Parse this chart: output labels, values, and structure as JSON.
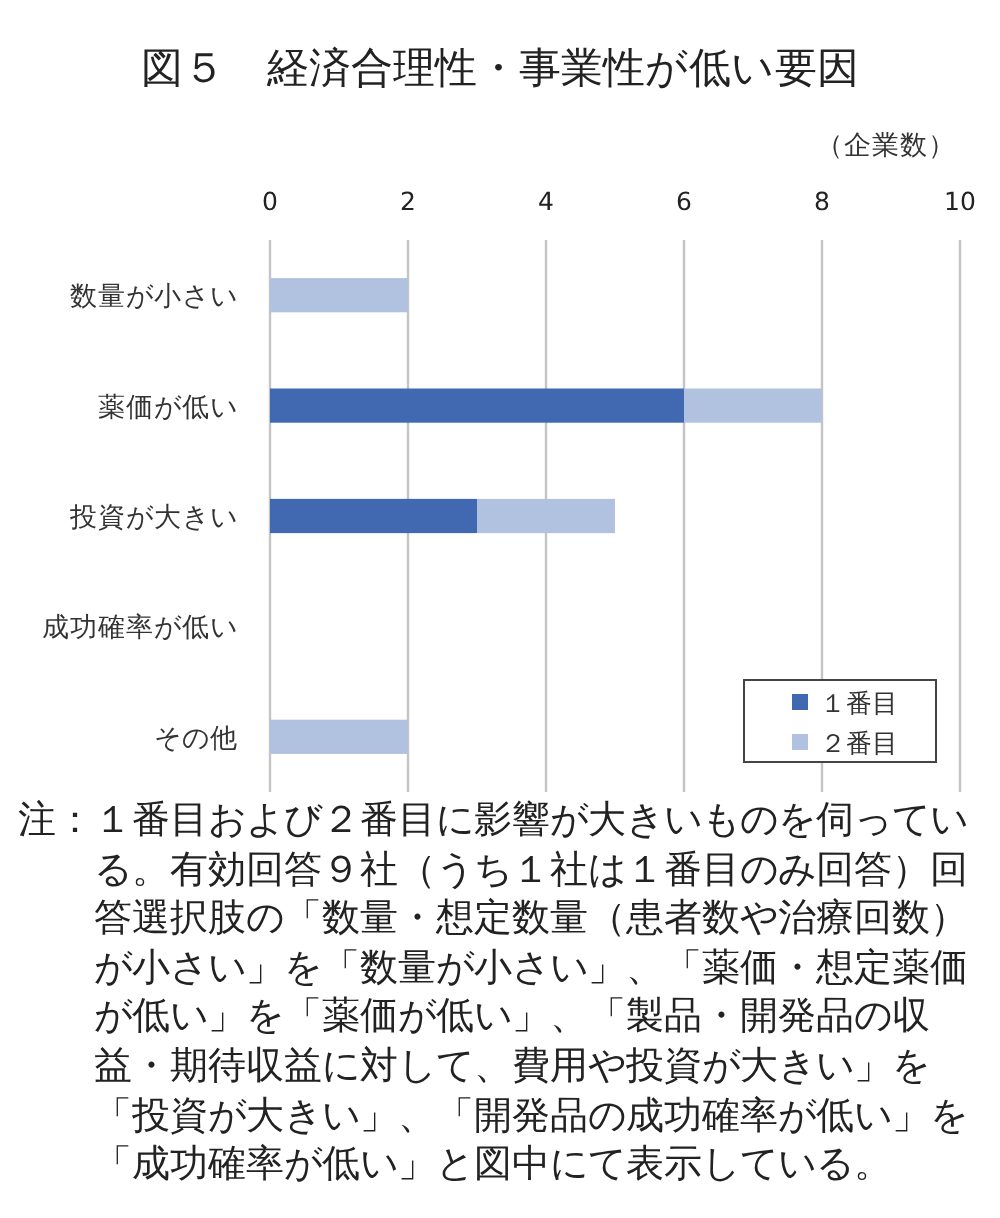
{
  "chart_data": {
    "type": "bar",
    "orientation": "horizontal",
    "stacked": true,
    "title": "図５　経済合理性・事業性が低い要因",
    "xlabel": "（企業数）",
    "categories": [
      "数量が小さい",
      "薬価が低い",
      "投資が大きい",
      "成功確率が低い",
      "その他"
    ],
    "series": [
      {
        "name": "１番目",
        "color": "#4169b2",
        "values": [
          0,
          6,
          3,
          0,
          0
        ]
      },
      {
        "name": "２番目",
        "color": "#b1c2e1",
        "values": [
          2,
          2,
          2,
          0,
          2
        ]
      }
    ],
    "xlim": [
      0,
      10
    ],
    "xticks": [
      0,
      2,
      4,
      6,
      8,
      10
    ],
    "grid": "x",
    "legend": "bottom right",
    "annotations": [
      "注：１番目および２番目に影響が大きいものを伺っている。有効回答９社（うち１社は１番目のみ回答）回答選択肢の「数量・想定数量（患者数や治療回数）が小さい」を「数量が小さい」、「薬価・想定薬価が低い」を「薬価が低い」、「製品・開発品の収益・期待収益に対して、費用や投資が大きい」を「投資が大きい」、「開発品の成功確率が低い」を「成功確率が低い」と図中にて表示している。"
    ]
  }
}
